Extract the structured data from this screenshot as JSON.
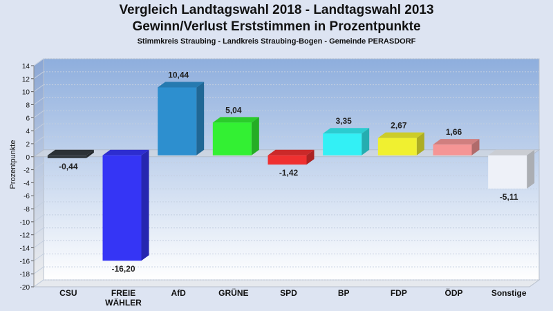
{
  "titles": {
    "line1": "Vergleich Landtagswahl 2018 - Landtagswahl 2013",
    "line2": "Gewinn/Verlust Erststimmen in Prozentpunkte",
    "subtitle": "Stimmkreis Straubing - Landkreis Straubing-Bogen - Gemeinde PERASDORF"
  },
  "chart_data": {
    "type": "bar",
    "title": "Vergleich Landtagswahl 2018 - Landtagswahl 2013",
    "subtitle": "Gewinn/Verlust Erststimmen in Prozentpunkte",
    "ylabel": "Prozentpunkte",
    "ylim": [
      -20,
      14
    ],
    "yticks": [
      "14",
      "12",
      "10",
      "8",
      "6",
      "4",
      "2",
      "0",
      "-2",
      "-4",
      "-6",
      "-8",
      "-10",
      "-12",
      "-14",
      "-16",
      "-18",
      "-20"
    ],
    "grid": true,
    "categories": [
      "CSU",
      "FREIE WÄHLER",
      "AfD",
      "GRÜNE",
      "SPD",
      "BP",
      "FDP",
      "ÖDP",
      "Sonstige"
    ],
    "category_lines": [
      [
        "CSU"
      ],
      [
        "FREIE",
        "WÄHLER"
      ],
      [
        "AfD"
      ],
      [
        "GRÜNE"
      ],
      [
        "SPD"
      ],
      [
        "BP"
      ],
      [
        "FDP"
      ],
      [
        "ÖDP"
      ],
      [
        "Sonstige"
      ]
    ],
    "values": [
      -0.44,
      -16.2,
      10.44,
      5.04,
      -1.42,
      3.35,
      2.67,
      1.66,
      -5.11
    ],
    "value_labels": [
      "-0,44",
      "-16,20",
      "10,44",
      "5,04",
      "-1,42",
      "3,35",
      "2,67",
      "1,66",
      "-5,11"
    ],
    "colors": [
      "#333a40",
      "#3535f5",
      "#2d8fcf",
      "#33f033",
      "#ef3030",
      "#33f0f5",
      "#f0f030",
      "#f59595",
      "#eef1f8"
    ]
  }
}
